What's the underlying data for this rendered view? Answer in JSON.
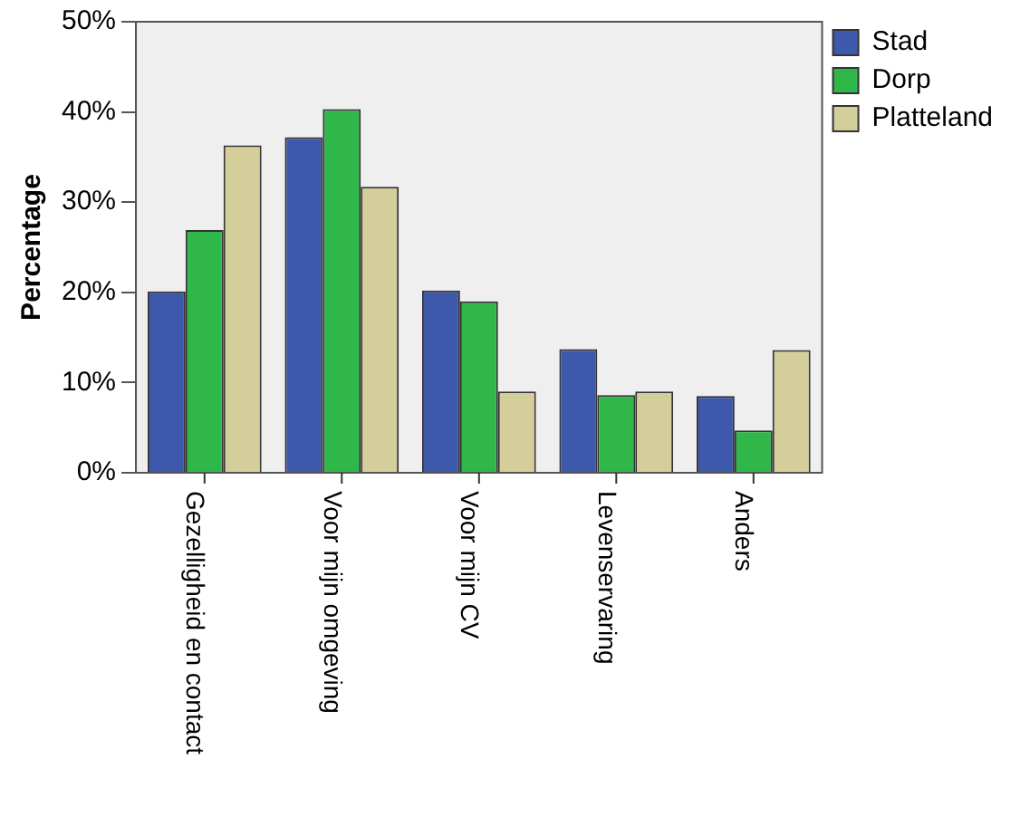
{
  "chart_data": {
    "type": "bar",
    "ylabel": "Percentage",
    "categories": [
      "Gezelligheid en contact",
      "Voor mijn omgeving",
      "Voor mijn CV",
      "Levenservaring",
      "Anders"
    ],
    "series": [
      {
        "name": "Stad",
        "color": "#3e58ac",
        "values": [
          20.1,
          37.2,
          20.2,
          13.7,
          8.5
        ]
      },
      {
        "name": "Dorp",
        "color": "#30b74a",
        "values": [
          26.9,
          40.3,
          19.0,
          8.6,
          4.7
        ]
      },
      {
        "name": "Platteland",
        "color": "#d4cf9a",
        "values": [
          36.3,
          31.7,
          9.0,
          9.0,
          13.6
        ]
      }
    ],
    "ylim": [
      0,
      50
    ],
    "yticks": [
      {
        "value": 0,
        "label": "0%"
      },
      {
        "value": 10,
        "label": "10%"
      },
      {
        "value": 20,
        "label": "20%"
      },
      {
        "value": 30,
        "label": "30%"
      },
      {
        "value": 40,
        "label": "40%"
      },
      {
        "value": 50,
        "label": "50%"
      }
    ],
    "grid": false,
    "legend": "right"
  }
}
